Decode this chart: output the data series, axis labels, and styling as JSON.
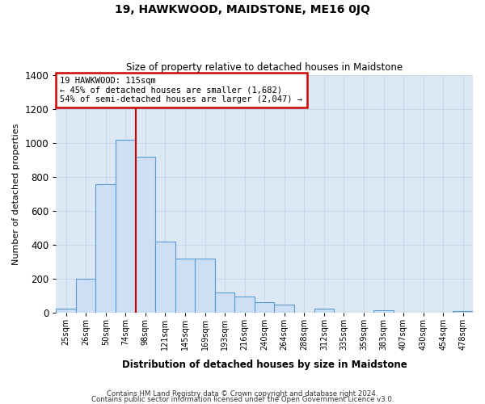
{
  "title": "19, HAWKWOOD, MAIDSTONE, ME16 0JQ",
  "subtitle": "Size of property relative to detached houses in Maidstone",
  "xlabel": "Distribution of detached houses by size in Maidstone",
  "ylabel": "Number of detached properties",
  "categories": [
    "25sqm",
    "26sqm",
    "50sqm",
    "74sqm",
    "98sqm",
    "121sqm",
    "145sqm",
    "169sqm",
    "193sqm",
    "216sqm",
    "240sqm",
    "264sqm",
    "288sqm",
    "312sqm",
    "335sqm",
    "359sqm",
    "383sqm",
    "407sqm",
    "430sqm",
    "454sqm",
    "478sqm"
  ],
  "values": [
    25,
    200,
    760,
    1020,
    920,
    420,
    320,
    320,
    120,
    95,
    65,
    50,
    0,
    25,
    0,
    0,
    15,
    0,
    0,
    0,
    10
  ],
  "bar_color": "#ccdff5",
  "bar_edge_color": "#5b9bd5",
  "grid_color": "#c8d8ec",
  "background_color": "#dde8f5",
  "annotation_title": "19 HAWKWOOD: 115sqm",
  "annotation_line1": "← 45% of detached houses are smaller (1,682)",
  "annotation_line2": "54% of semi-detached houses are larger (2,047) →",
  "box_edge_color": "#cc0000",
  "property_line_idx": 4,
  "ylim": [
    0,
    1400
  ],
  "yticks": [
    0,
    200,
    400,
    600,
    800,
    1000,
    1200,
    1400
  ],
  "footnote1": "Contains HM Land Registry data © Crown copyright and database right 2024.",
  "footnote2": "Contains public sector information licensed under the Open Government Licence v3.0.",
  "fig_width": 6.0,
  "fig_height": 5.0,
  "dpi": 100
}
